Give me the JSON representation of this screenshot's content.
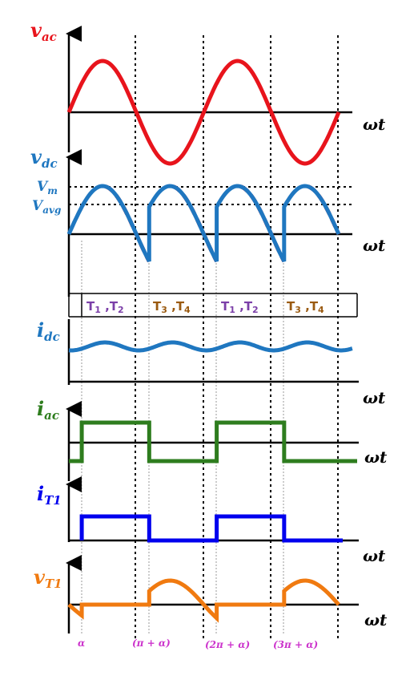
{
  "signals": {
    "vac": {
      "sym": "v",
      "sub": "ac",
      "color": "#e8141c"
    },
    "vdc": {
      "sym": "v",
      "sub": "dc",
      "color": "#1f77c0"
    },
    "idc": {
      "sym": "i",
      "sub": "dc",
      "color": "#1f77c0"
    },
    "iac": {
      "sym": "i",
      "sub": "ac",
      "color": "#2e7d1e"
    },
    "iT1": {
      "sym": "i",
      "sub": "T1",
      "color": "#0000ee"
    },
    "vT1": {
      "sym": "v",
      "sub": "T1",
      "color": "#f07a10"
    }
  },
  "axis_label": "ωt",
  "levels": {
    "vm": {
      "sym": "V",
      "sub": "m"
    },
    "vavg": {
      "sym": "V",
      "sub": "avg"
    }
  },
  "conduction": {
    "t12": {
      "a": "T",
      "asub": "1",
      "sep": " ,",
      "b": "T",
      "bsub": "2",
      "color": "#7b3fa8"
    },
    "t34": {
      "a": "T",
      "asub": "3",
      "sep": " ,",
      "b": "T",
      "bsub": "4",
      "color": "#9a5a10"
    }
  },
  "angles": {
    "a0": "α",
    "a1": "(π + α)",
    "a2": "(2π + α)",
    "a3": "(3π + α)"
  },
  "colors": {
    "ref_dash": "#e8141c",
    "axis": "#000000"
  }
}
